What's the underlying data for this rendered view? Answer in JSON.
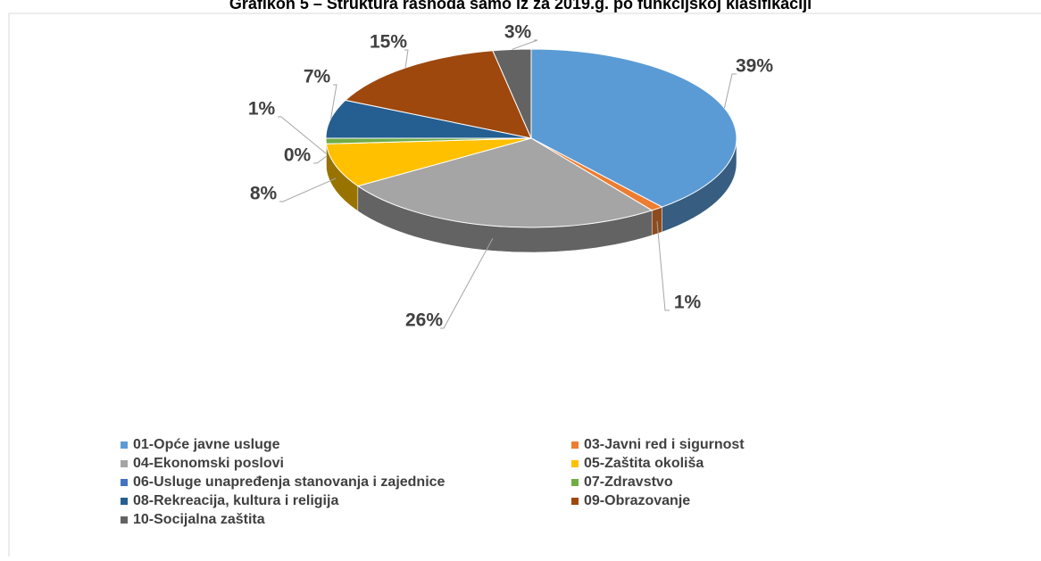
{
  "chart_data": {
    "type": "pie3d",
    "title": "Grafikon 5 – Struktura rashoda samo iz za 2019.g. po funkcijskoj klasifikaciji",
    "categories": [
      "01-Opće javne usluge",
      "03-Javni red i sigurnost",
      "04-Ekonomski poslovi",
      "05-Zaštita okoliša",
      "06-Usluge unapređenja stanovanja i zajednice",
      "07-Zdravstvo",
      "08-Rekreacija, kultura i religija",
      "09-Obrazovanje",
      "10-Socijalna zaštita"
    ],
    "values": [
      39,
      1,
      26,
      8,
      0,
      1,
      7,
      15,
      3
    ],
    "value_labels": [
      "39%",
      "1%",
      "26%",
      "8%",
      "0%",
      "1%",
      "7%",
      "15%",
      "3%"
    ],
    "colors": [
      "#5b9bd5",
      "#ed7d31",
      "#a5a5a5",
      "#ffc000",
      "#4472c4",
      "#70ad47",
      "#255e91",
      "#9e480e",
      "#636363"
    ],
    "legend": "bottom"
  }
}
